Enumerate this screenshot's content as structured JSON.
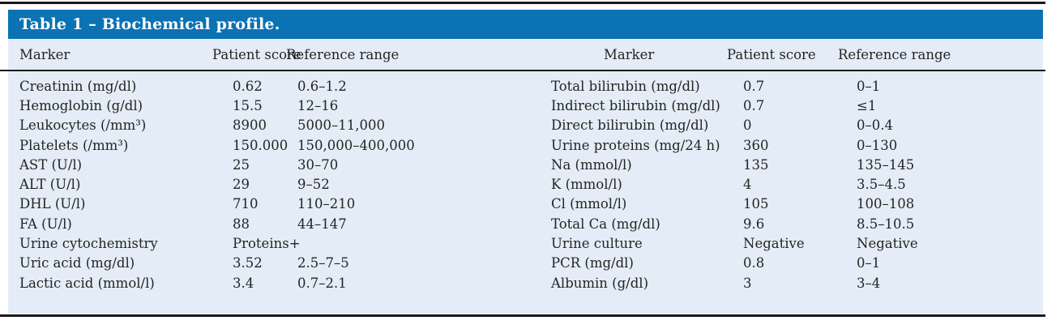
{
  "table": {
    "title": "Table 1 – Biochemical profile.",
    "columns": {
      "marker": "Marker",
      "patient_score": "Patient score",
      "reference_range": "Reference range"
    },
    "left_rows": [
      {
        "marker": "Creatinin (mg/dl)",
        "score": "0.62",
        "range": "0.6–1.2"
      },
      {
        "marker": "Hemoglobin (g/dl)",
        "score": "15.5",
        "range": "12–16"
      },
      {
        "marker": "Leukocytes (/mm³)",
        "score": "8900",
        "range": "5000–11,000"
      },
      {
        "marker": "Platelets (/mm³)",
        "score": "150.000",
        "range": "150,000–400,000"
      },
      {
        "marker": "AST (U/l)",
        "score": "25",
        "range": "30–70"
      },
      {
        "marker": "ALT (U/l)",
        "score": "29",
        "range": "9–52"
      },
      {
        "marker": "DHL (U/l)",
        "score": "710",
        "range": "110–210"
      },
      {
        "marker": "FA (U/l)",
        "score": "88",
        "range": "44–147"
      },
      {
        "marker": "Urine cytochemistry",
        "score": "Proteins+",
        "range": ""
      },
      {
        "marker": "Uric acid (mg/dl)",
        "score": "3.52",
        "range": "2.5–7–5"
      },
      {
        "marker": "Lactic acid (mmol/l)",
        "score": "3.4",
        "range": "0.7–2.1"
      }
    ],
    "right_rows": [
      {
        "marker": "Total bilirubin (mg/dl)",
        "score": "0.7",
        "range": "0–1"
      },
      {
        "marker": "Indirect bilirubin (mg/dl)",
        "score": "0.7",
        "range": "≤1"
      },
      {
        "marker": "Direct bilirubin (mg/dl)",
        "score": "0",
        "range": "0–0.4"
      },
      {
        "marker": "Urine proteins (mg/24 h)",
        "score": "360",
        "range": "0–130"
      },
      {
        "marker": "Na (mmol/l)",
        "score": "135",
        "range": "135–145"
      },
      {
        "marker": "K (mmol/l)",
        "score": "4",
        "range": "3.5–4.5"
      },
      {
        "marker": "Cl (mmol/l)",
        "score": "105",
        "range": "100–108"
      },
      {
        "marker": "Total Ca (mg/dl)",
        "score": "9.6",
        "range": "8.5–10.5"
      },
      {
        "marker": "Urine culture",
        "score": "Negative",
        "range": "Negative"
      },
      {
        "marker": "PCR (mg/dl)",
        "score": "0.8",
        "range": "0–1"
      },
      {
        "marker": "Albumin (g/dl)",
        "score": "3",
        "range": "3–4"
      }
    ]
  },
  "colors": {
    "header_bg": "#0b72b4",
    "body_bg": "#e4edf7",
    "rule": "#1a1a1a",
    "title_text": "#ffffff",
    "body_text": "#242424"
  }
}
